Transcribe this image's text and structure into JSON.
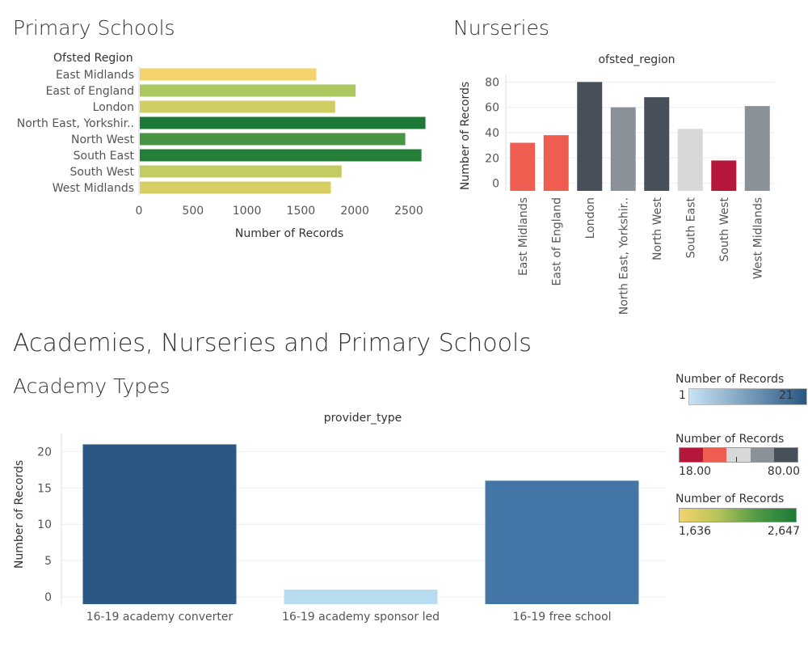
{
  "primary": {
    "title": "Primary Schools",
    "row_header": "Ofsted Region",
    "xlabel": "Number of Records",
    "ticks": [
      "0",
      "500",
      "1000",
      "1500",
      "2000",
      "2500"
    ],
    "color_scale": [
      "#f3d36b",
      "#8fc25a",
      "#1d7a36"
    ]
  },
  "nurseries": {
    "title": "Nurseries",
    "column_header": "ofsted_region",
    "ylabel": "Number of Records",
    "ticks": [
      "0",
      "20",
      "40",
      "60",
      "80"
    ],
    "colors": [
      "#ef5d50",
      "#ef5d50",
      "#474f5a",
      "#8a9199",
      "#474f5a",
      "#d8d8d8",
      "#b5163a",
      "#8a9199"
    ]
  },
  "dashboard_title": "Academies, Nurseries and Primary Schools",
  "academy": {
    "title": "Academy Types",
    "column_header": "provider_type",
    "ylabel": "Number of Records",
    "ticks": [
      "0",
      "5",
      "10",
      "15",
      "20"
    ],
    "colors": [
      "#2a5783",
      "#b8dcef",
      "#4475a7"
    ]
  },
  "legends": {
    "blue": {
      "title": "Number of Records",
      "min": "1",
      "max": "21"
    },
    "diverging": {
      "title": "Number of Records",
      "min": "18.00",
      "max": "80.00",
      "colors": [
        "#b5163a",
        "#ef5d50",
        "#d8d8d8",
        "#8a9199",
        "#474f5a"
      ]
    },
    "green": {
      "title": "Number of Records",
      "min": "1,636",
      "max": "2,647"
    }
  },
  "chart_data": [
    {
      "type": "bar",
      "orientation": "horizontal",
      "title": "Primary Schools",
      "categories": [
        "East Midlands",
        "East of England",
        "London",
        "North East, Yorkshir..",
        "North West",
        "South East",
        "South West",
        "West Midlands"
      ],
      "values": [
        1636,
        2000,
        1810,
        2647,
        2460,
        2610,
        1870,
        1770
      ],
      "xlabel": "Number of Records",
      "ylabel": "Ofsted Region",
      "xlim": [
        0,
        2800
      ]
    },
    {
      "type": "bar",
      "title": "Nurseries",
      "categories": [
        "East Midlands",
        "East of England",
        "London",
        "North East, Yorkshir..",
        "North West",
        "South East",
        "South West",
        "West Midlands"
      ],
      "values": [
        32,
        38,
        80,
        60,
        68,
        43,
        18,
        61
      ],
      "xlabel": "ofsted_region",
      "ylabel": "Number of Records",
      "ylim": [
        -6,
        86
      ]
    },
    {
      "type": "bar",
      "title": "Academy Types",
      "categories": [
        "16-19 academy converter",
        "16-19 academy sponsor led",
        "16-19 free school"
      ],
      "values": [
        21,
        1,
        16
      ],
      "xlabel": "provider_type",
      "ylabel": "Number of Records",
      "ylim": [
        -1,
        22.5
      ]
    }
  ]
}
